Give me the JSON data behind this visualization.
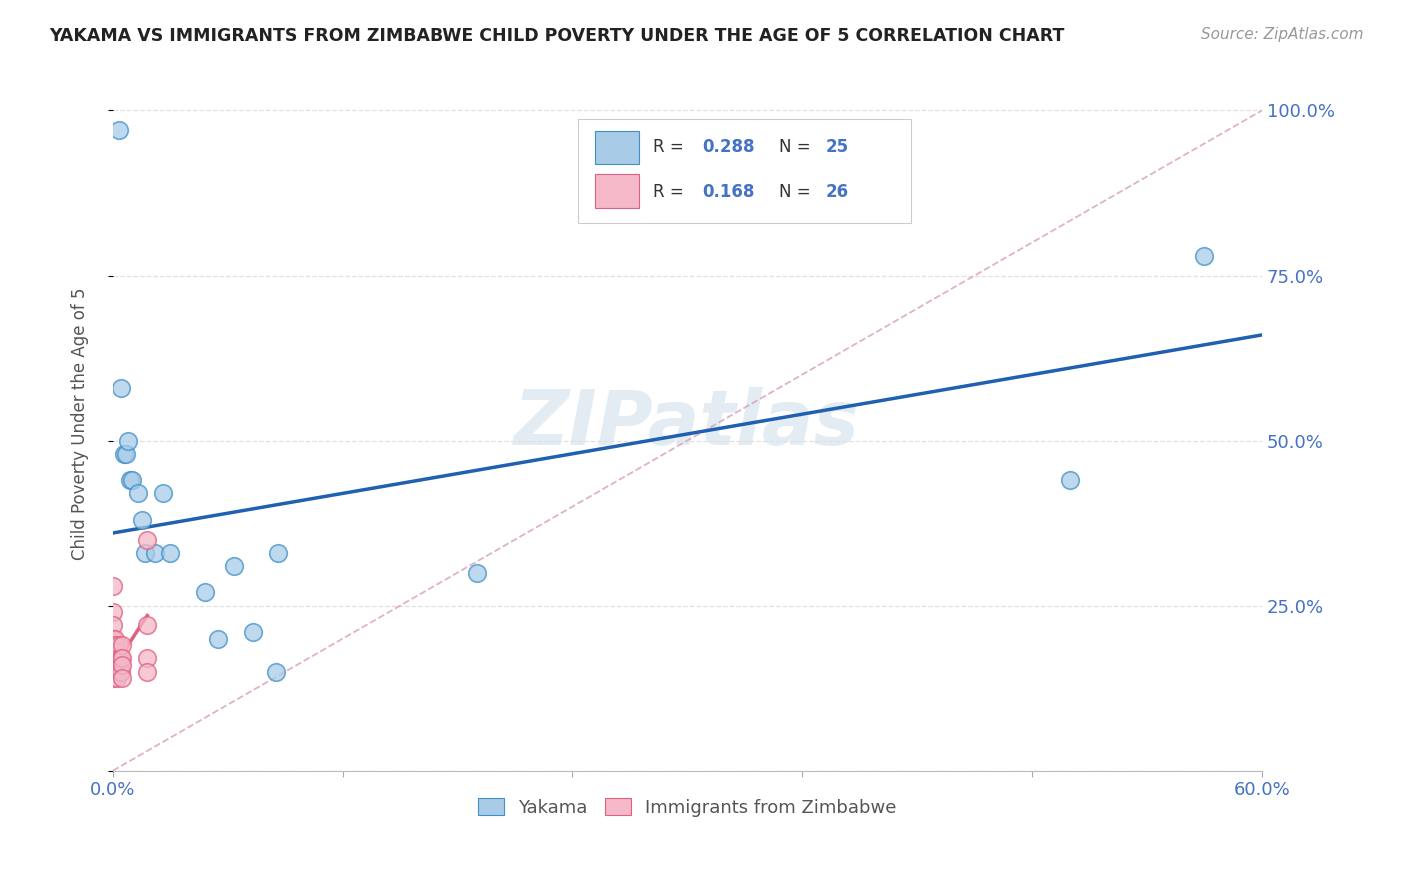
{
  "title": "YAKAMA VS IMMIGRANTS FROM ZIMBABWE CHILD POVERTY UNDER THE AGE OF 5 CORRELATION CHART",
  "source": "Source: ZipAtlas.com",
  "ylabel": "Child Poverty Under the Age of 5",
  "xlim": [
    0.0,
    0.6
  ],
  "ylim": [
    0.0,
    1.05
  ],
  "x_ticks": [
    0.0,
    0.12,
    0.24,
    0.36,
    0.48,
    0.6
  ],
  "x_tick_labels": [
    "0.0%",
    "",
    "",
    "",
    "",
    "60.0%"
  ],
  "y_tick_labels": [
    "",
    "25.0%",
    "50.0%",
    "75.0%",
    "100.0%"
  ],
  "y_ticks": [
    0.0,
    0.25,
    0.5,
    0.75,
    1.0
  ],
  "watermark": "ZIPatlas",
  "blue_color": "#a8cce8",
  "pink_color": "#f4b8c8",
  "blue_edge_color": "#4090c8",
  "pink_edge_color": "#e06080",
  "blue_line_color": "#2060b0",
  "pink_line_color": "#e06080",
  "diag_dash_color": "#d8a0b0",
  "grid_color": "#e0e0e0",
  "yakama_points_x": [
    0.003,
    0.004,
    0.006,
    0.007,
    0.008,
    0.009,
    0.01,
    0.013,
    0.015,
    0.017,
    0.022,
    0.026,
    0.03,
    0.048,
    0.055,
    0.063,
    0.073,
    0.085,
    0.086,
    0.19,
    0.5,
    0.57
  ],
  "yakama_points_y": [
    0.97,
    0.58,
    0.48,
    0.48,
    0.5,
    0.44,
    0.44,
    0.42,
    0.38,
    0.33,
    0.33,
    0.42,
    0.33,
    0.27,
    0.2,
    0.31,
    0.21,
    0.15,
    0.33,
    0.3,
    0.44,
    0.78
  ],
  "zimbabwe_points_x": [
    0.0,
    0.0,
    0.0,
    0.0,
    0.0,
    0.0,
    0.0,
    0.001,
    0.001,
    0.001,
    0.001,
    0.002,
    0.002,
    0.002,
    0.003,
    0.003,
    0.004,
    0.004,
    0.005,
    0.005,
    0.005,
    0.005,
    0.018,
    0.018,
    0.018,
    0.018
  ],
  "zimbabwe_points_y": [
    0.28,
    0.24,
    0.22,
    0.2,
    0.18,
    0.16,
    0.14,
    0.2,
    0.19,
    0.17,
    0.16,
    0.18,
    0.16,
    0.14,
    0.19,
    0.17,
    0.17,
    0.15,
    0.19,
    0.17,
    0.16,
    0.14,
    0.35,
    0.22,
    0.17,
    0.15
  ],
  "blue_trend": [
    0.0,
    0.6,
    0.36,
    0.66
  ],
  "pink_trend": [
    0.0,
    0.018,
    0.155,
    0.235
  ],
  "diag_line": [
    0.0,
    0.6,
    0.0,
    1.0
  ]
}
